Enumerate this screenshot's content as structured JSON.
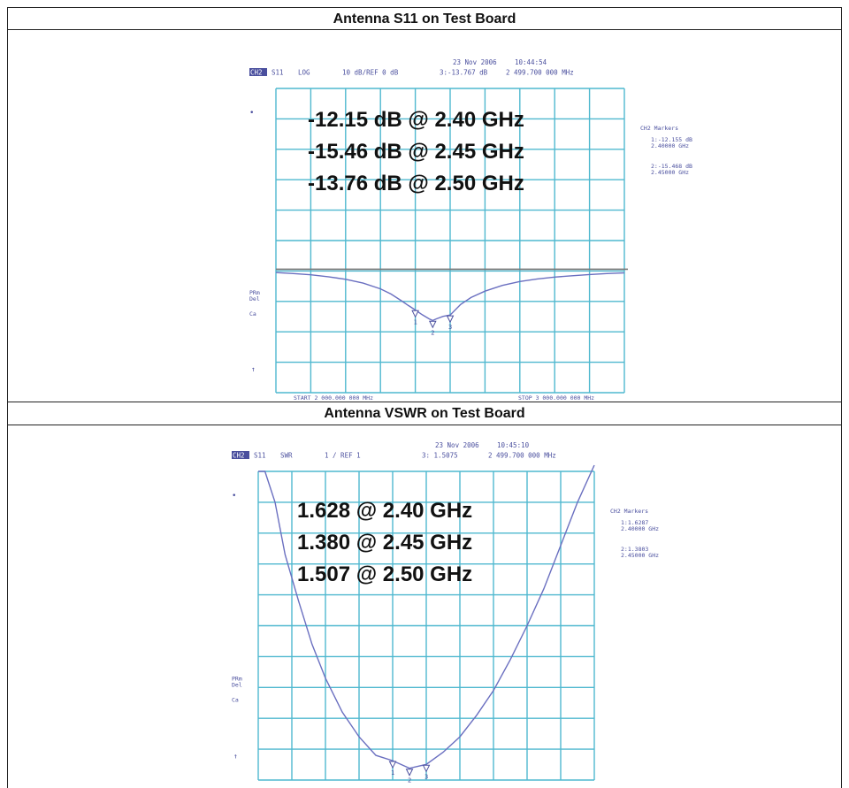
{
  "table": {
    "header1": "Antenna S11 on Test Board",
    "header2": "Antenna VSWR on Test Board"
  },
  "chart_data": [
    {
      "type": "line",
      "title": "Antenna S11 on Test Board",
      "instrument_header": {
        "channel": "CH2",
        "param": "S11",
        "format": "LOG",
        "scale": "10 dB/REF 0 dB",
        "date": "23 Nov 2006",
        "time": "10:44:54",
        "marker_readout": "3:-13.767 dB",
        "marker_freq": "2 499.700 000 MHz",
        "start": "START 2 000.000 000 MHz",
        "stop": "STOP 3 000.000 000 MHz",
        "side_labels": [
          "PRm",
          "Del",
          "Ca"
        ],
        "markers_title": "CH2 Markers",
        "marker_list": [
          {
            "id": "1",
            "value": "-12.155 dB",
            "freq": "2.40000 GHz"
          },
          {
            "id": "2",
            "value": "-15.468 dB",
            "freq": "2.45000 GHz"
          }
        ]
      },
      "annotations": [
        "-12.15 dB @ 2.40 GHz",
        "-15.46 dB @ 2.45 GHz",
        "-13.76 dB @ 2.50 GHz"
      ],
      "x_unit": "GHz",
      "xlim": [
        2.0,
        3.0
      ],
      "ylim": [
        -50,
        0
      ],
      "ref_level": -0.0,
      "grid": true,
      "series": [
        {
          "x": [
            2.0,
            2.05,
            2.1,
            2.15,
            2.2,
            2.25,
            2.3,
            2.33,
            2.36,
            2.38,
            2.4,
            2.42,
            2.44,
            2.45,
            2.46,
            2.48,
            2.5,
            2.53,
            2.56,
            2.6,
            2.65,
            2.7,
            2.75,
            2.8,
            2.85,
            2.9,
            2.95,
            3.0
          ],
          "y": [
            -0.5,
            -0.8,
            -1.2,
            -1.8,
            -2.6,
            -3.8,
            -5.6,
            -7.2,
            -9.3,
            -10.8,
            -12.2,
            -13.7,
            -15.0,
            -15.5,
            -15.0,
            -14.2,
            -13.8,
            -10.5,
            -8.3,
            -6.3,
            -4.5,
            -3.3,
            -2.5,
            -1.9,
            -1.5,
            -1.1,
            -0.8,
            -0.6
          ]
        }
      ],
      "markers": [
        {
          "id": "1",
          "x": 2.4,
          "y": -12.155
        },
        {
          "id": "2",
          "x": 2.45,
          "y": -15.468
        },
        {
          "id": "3",
          "x": 2.5,
          "y": -13.767
        }
      ],
      "color": "#6a6fc0"
    },
    {
      "type": "line",
      "title": "Antenna VSWR on Test Board",
      "instrument_header": {
        "channel": "CH2",
        "param": "S11",
        "format": "SWR",
        "scale": "1 / REF 1",
        "date": "23 Nov 2006",
        "time": "10:45:10",
        "marker_readout": "3: 1.5075",
        "marker_freq": "2 499.700 000 MHz",
        "side_labels": [
          "PRm",
          "Del",
          "Ca"
        ],
        "markers_title": "CH2 Markers",
        "marker_list": [
          {
            "id": "1",
            "value": "1.6287",
            "freq": "2.40000 GHz"
          },
          {
            "id": "2",
            "value": "1.3803",
            "freq": "2.45000 GHz"
          }
        ]
      },
      "annotations": [
        "1.628 @ 2.40 GHz",
        "1.380 @ 2.45 GHz",
        "1.507 @ 2.50 GHz"
      ],
      "x_unit": "GHz",
      "xlim": [
        2.0,
        3.0
      ],
      "ylim": [
        1,
        11
      ],
      "grid": true,
      "series": [
        {
          "x": [
            2.0,
            2.02,
            2.05,
            2.08,
            2.12,
            2.16,
            2.2,
            2.25,
            2.3,
            2.35,
            2.4,
            2.45,
            2.5,
            2.55,
            2.6,
            2.65,
            2.7,
            2.75,
            2.8,
            2.85,
            2.9,
            2.95,
            3.0
          ],
          "y": [
            11.0,
            11.0,
            10.0,
            8.3,
            6.8,
            5.4,
            4.3,
            3.2,
            2.4,
            1.8,
            1.628,
            1.38,
            1.507,
            1.9,
            2.4,
            3.1,
            3.9,
            4.9,
            6.0,
            7.2,
            8.6,
            10.0,
            11.2
          ]
        }
      ],
      "markers": [
        {
          "id": "1",
          "x": 2.4,
          "y": 1.6287
        },
        {
          "id": "2",
          "x": 2.45,
          "y": 1.3803
        },
        {
          "id": "3",
          "x": 2.5,
          "y": 1.5075
        }
      ],
      "color": "#6a6fc0"
    }
  ]
}
